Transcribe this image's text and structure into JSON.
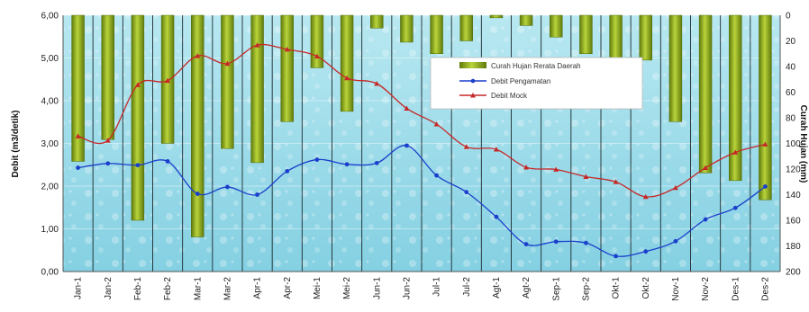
{
  "chart_data": {
    "type": "bar",
    "categories": [
      "Jan-1",
      "Jan-2",
      "Feb-1",
      "Feb-2",
      "Mar-1",
      "Mar-2",
      "Apr-1",
      "Apr-2",
      "Mei-1",
      "Mei-2",
      "Jun-1",
      "Jun-2",
      "Jul-1",
      "Jul-2",
      "Agt-1",
      "Agt-2",
      "Sep-1",
      "Sep-2",
      "Okt-1",
      "Okt-2",
      "Nov-1",
      "Nov-2",
      "Des-1",
      "Des-2"
    ],
    "series": [
      {
        "name": "Curah Hujan Rerata Daerah",
        "type": "bar",
        "axis": "right",
        "values": [
          114,
          97,
          160,
          100,
          173,
          104,
          115,
          83,
          41,
          75,
          10,
          21,
          30,
          20,
          2,
          8,
          17,
          30,
          45,
          35,
          83,
          123,
          129,
          144
        ]
      },
      {
        "name": "Debit Pengamatan",
        "type": "line",
        "axis": "left",
        "values": [
          2.43,
          2.53,
          2.49,
          2.58,
          1.82,
          1.98,
          1.8,
          2.35,
          2.62,
          2.51,
          2.54,
          2.95,
          2.25,
          1.86,
          1.28,
          0.64,
          0.7,
          0.67,
          0.36,
          0.47,
          0.71,
          1.22,
          1.49,
          1.99
        ]
      },
      {
        "name": "Debit Mock",
        "type": "line",
        "axis": "left",
        "values": [
          3.17,
          3.07,
          4.37,
          4.47,
          5.05,
          4.87,
          5.3,
          5.2,
          5.04,
          4.53,
          4.4,
          3.82,
          3.45,
          2.92,
          2.86,
          2.44,
          2.39,
          2.22,
          2.1,
          1.75,
          1.96,
          2.43,
          2.79,
          2.98
        ]
      }
    ],
    "ylabel": "Debit (m3/detik)",
    "y2label": "Curah Hujan (mm)",
    "ylim": [
      0,
      6
    ],
    "y2lim": [
      0,
      200
    ],
    "y2_inverted": true,
    "yticks": [
      "0,00",
      "1,00",
      "2,00",
      "3,00",
      "4,00",
      "5,00",
      "6,00"
    ],
    "y2ticks": [
      "0",
      "20",
      "40",
      "60",
      "80",
      "100",
      "120",
      "140",
      "160",
      "180",
      "200"
    ],
    "legend_position": "upper-middle-right",
    "colors": {
      "bar": "#9cb81e",
      "bar_dark": "#5f7a0c",
      "pengamatan": "#1a3fcc",
      "mock": "#c62828",
      "plot_bg": "#8fd6e6"
    }
  }
}
